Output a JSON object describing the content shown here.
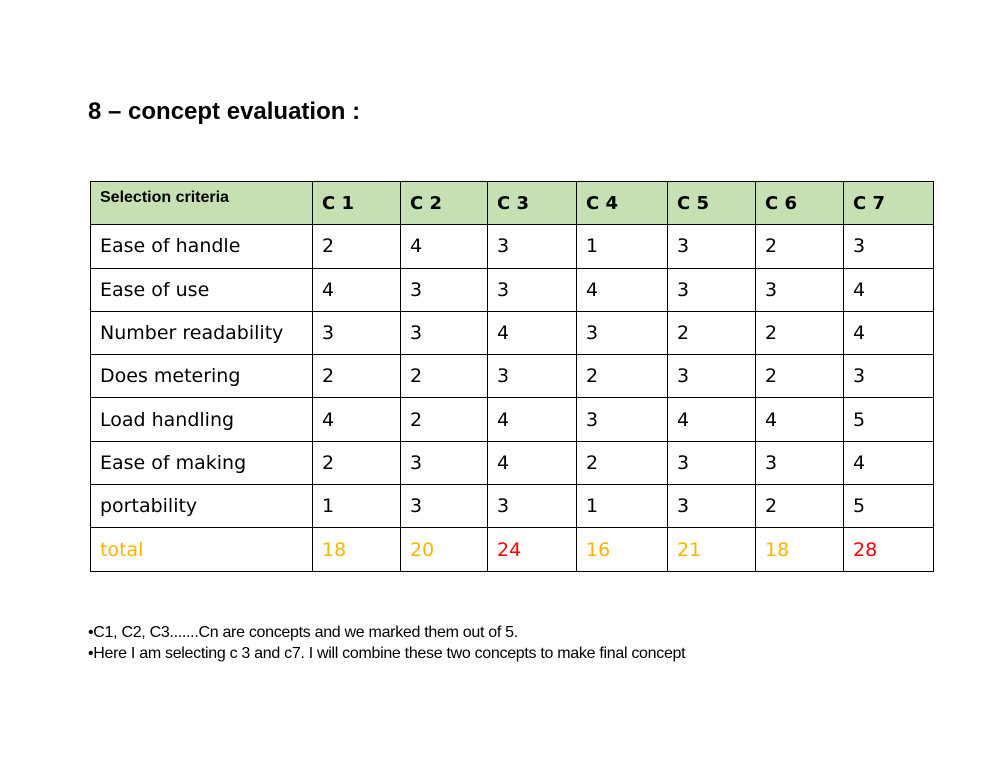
{
  "title": "8 – concept evaluation :",
  "table": {
    "header": [
      "Selection criteria",
      "C 1",
      "C 2",
      "C 3",
      "C 4",
      "C 5",
      "C 6",
      "C 7"
    ],
    "rows": [
      {
        "label": "Ease of handle",
        "values": [
          "2",
          "4",
          "3",
          "1",
          "3",
          "2",
          "3"
        ]
      },
      {
        "label": "Ease of use",
        "values": [
          "4",
          "3",
          "3",
          "4",
          "3",
          "3",
          "4"
        ]
      },
      {
        "label": "Number readability",
        "values": [
          "3",
          "3",
          "4",
          "3",
          "2",
          "2",
          "4"
        ]
      },
      {
        "label": "Does metering",
        "values": [
          "2",
          "2",
          "3",
          "2",
          "3",
          "2",
          "3"
        ]
      },
      {
        "label": "Load handling",
        "values": [
          "4",
          "2",
          "4",
          "3",
          "4",
          "4",
          "5"
        ]
      },
      {
        "label": "Ease of making",
        "values": [
          "2",
          "3",
          "4",
          "2",
          "3",
          "3",
          "4"
        ]
      },
      {
        "label": "portability",
        "values": [
          "1",
          "3",
          "3",
          "1",
          "3",
          "2",
          "5"
        ]
      }
    ],
    "total": {
      "label": "total",
      "label_color": "#ffb300",
      "values": [
        {
          "v": "18",
          "color": "#ffb300"
        },
        {
          "v": "20",
          "color": "#ffb300"
        },
        {
          "v": "24",
          "color": "#ff0000"
        },
        {
          "v": "16",
          "color": "#ffb300"
        },
        {
          "v": "21",
          "color": "#ffb300"
        },
        {
          "v": "18",
          "color": "#ffb300"
        },
        {
          "v": "28",
          "color": "#ff0000"
        }
      ]
    },
    "header_bg": "#c6e0b4"
  },
  "notes": [
    "•C1, C2, C3.......Cn  are concepts  and we marked them out of 5.",
    "•Here I am selecting c 3 and c7. I will combine these two concepts to make final concept"
  ]
}
